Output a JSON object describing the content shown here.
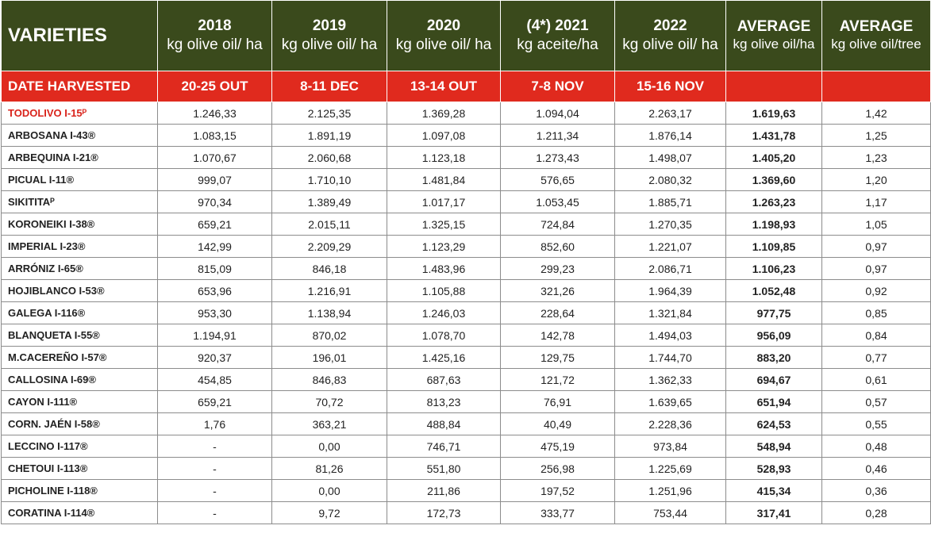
{
  "header": {
    "varieties": "VARIETIES",
    "columns": [
      {
        "year": "2018",
        "unit": "kg olive oil/ ha"
      },
      {
        "year": "2019",
        "unit": "kg olive oil/ ha"
      },
      {
        "year": "2020",
        "unit": "kg olive oil/ ha"
      },
      {
        "year": "(4*) 2021",
        "unit": "kg aceite/ha"
      },
      {
        "year": "2022",
        "unit": "kg olive oil/ ha"
      },
      {
        "year": "AVERAGE",
        "unit": "kg olive oil/ha"
      },
      {
        "year": "AVERAGE",
        "unit": "kg olive oil/tree"
      }
    ]
  },
  "harvest": {
    "label": "DATE HARVESTED",
    "dates": [
      "20-25 OUT",
      "8-11 DEC",
      "13-14  OUT",
      "7-8 NOV",
      "15-16 NOV",
      "",
      ""
    ]
  },
  "rows": [
    {
      "name": "TODOLIVO I-15ᴾ",
      "values": [
        "1.246,33",
        "2.125,35",
        "1.369,28",
        "1.094,04",
        "2.263,17",
        "1.619,63",
        "1,42"
      ]
    },
    {
      "name": "ARBOSANA I-43®",
      "values": [
        "1.083,15",
        "1.891,19",
        "1.097,08",
        "1.211,34",
        "1.876,14",
        "1.431,78",
        "1,25"
      ]
    },
    {
      "name": "ARBEQUINA I-21®",
      "values": [
        "1.070,67",
        "2.060,68",
        "1.123,18",
        "1.273,43",
        "1.498,07",
        "1.405,20",
        "1,23"
      ]
    },
    {
      "name": "PICUAL I-11®",
      "values": [
        "999,07",
        "1.710,10",
        "1.481,84",
        "576,65",
        "2.080,32",
        "1.369,60",
        "1,20"
      ]
    },
    {
      "name": "SIKITITAᴾ",
      "values": [
        "970,34",
        "1.389,49",
        "1.017,17",
        "1.053,45",
        "1.885,71",
        "1.263,23",
        "1,17"
      ]
    },
    {
      "name": "KORONEIKI I-38®",
      "values": [
        "659,21",
        "2.015,11",
        "1.325,15",
        "724,84",
        "1.270,35",
        "1.198,93",
        "1,05"
      ]
    },
    {
      "name": "IMPERIAL I-23®",
      "values": [
        "142,99",
        "2.209,29",
        "1.123,29",
        "852,60",
        "1.221,07",
        "1.109,85",
        "0,97"
      ]
    },
    {
      "name": "ARRÓNIZ I-65®",
      "values": [
        "815,09",
        "846,18",
        "1.483,96",
        "299,23",
        "2.086,71",
        "1.106,23",
        "0,97"
      ]
    },
    {
      "name": "HOJIBLANCO I-53®",
      "values": [
        "653,96",
        "1.216,91",
        "1.105,88",
        "321,26",
        "1.964,39",
        "1.052,48",
        "0,92"
      ]
    },
    {
      "name": "GALEGA I-116®",
      "values": [
        "953,30",
        "1.138,94",
        "1.246,03",
        "228,64",
        "1.321,84",
        "977,75",
        "0,85"
      ]
    },
    {
      "name": "BLANQUETA I-55®",
      "values": [
        "1.194,91",
        "870,02",
        "1.078,70",
        "142,78",
        "1.494,03",
        "956,09",
        "0,84"
      ]
    },
    {
      "name": "M.CACEREÑO I-57®",
      "values": [
        "920,37",
        "196,01",
        "1.425,16",
        "129,75",
        "1.744,70",
        "883,20",
        "0,77"
      ]
    },
    {
      "name": "CALLOSINA I-69®",
      "values": [
        "454,85",
        "846,83",
        "687,63",
        "121,72",
        "1.362,33",
        "694,67",
        "0,61"
      ]
    },
    {
      "name": "CAYON I-111®",
      "values": [
        "659,21",
        "70,72",
        "813,23",
        "76,91",
        "1.639,65",
        "651,94",
        "0,57"
      ]
    },
    {
      "name": "CORN. JAÉN I-58®",
      "values": [
        "1,76",
        "363,21",
        "488,84",
        "40,49",
        "2.228,36",
        "624,53",
        "0,55"
      ]
    },
    {
      "name": "LECCINO I-117®",
      "values": [
        "-",
        "0,00",
        "746,71",
        "475,19",
        "973,84",
        "548,94",
        "0,48"
      ]
    },
    {
      "name": "CHETOUI I-113®",
      "values": [
        "-",
        "81,26",
        "551,80",
        "256,98",
        "1.225,69",
        "528,93",
        "0,46"
      ]
    },
    {
      "name": "PICHOLINE I-118®",
      "values": [
        "-",
        "0,00",
        "211,86",
        "197,52",
        "1.251,96",
        "415,34",
        "0,36"
      ]
    },
    {
      "name": "CORATINA I-114®",
      "values": [
        "-",
        "9,72",
        "172,73",
        "333,77",
        "753,44",
        "317,41",
        "0,28"
      ]
    }
  ]
}
